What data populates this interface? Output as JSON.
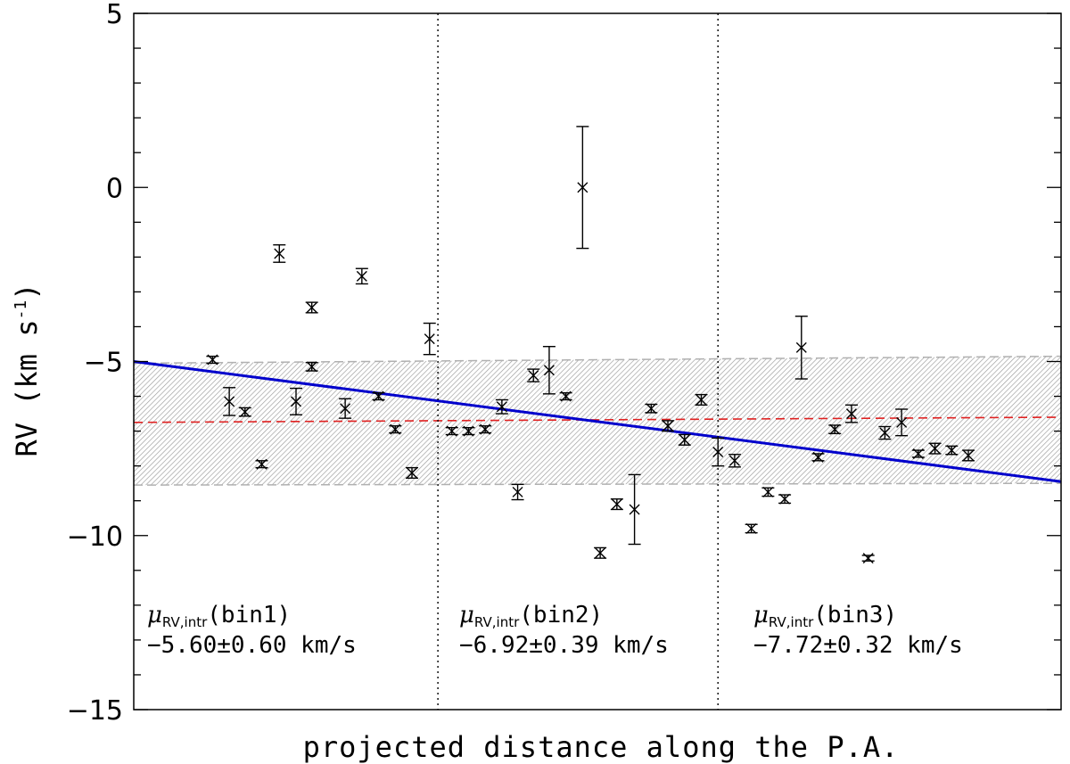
{
  "chart_data": {
    "type": "scatter",
    "title": "",
    "xlabel": "projected distance along the P.A.",
    "ylabel_base": "RV (km s",
    "ylabel_exp": "-1",
    "ylabel_close": ")",
    "ylim": [
      -15,
      5
    ],
    "xlim": [
      0,
      100
    ],
    "y_ticks": [
      5,
      0,
      -5,
      -10,
      -15
    ],
    "y_tick_labels": [
      "5",
      "0",
      "−5",
      "−10",
      "−15"
    ],
    "bin_boundaries_x": [
      32.8,
      63.0
    ],
    "points": [
      {
        "x": 8.5,
        "y": -4.95,
        "err": 0.1
      },
      {
        "x": 10.3,
        "y": -6.15,
        "err": 0.4
      },
      {
        "x": 12.0,
        "y": -6.45,
        "err": 0.12
      },
      {
        "x": 13.8,
        "y": -7.95,
        "err": 0.1
      },
      {
        "x": 15.7,
        "y": -1.9,
        "err": 0.25
      },
      {
        "x": 19.2,
        "y": -3.45,
        "err": 0.15
      },
      {
        "x": 19.2,
        "y": -5.15,
        "err": 0.12
      },
      {
        "x": 17.5,
        "y": -6.15,
        "err": 0.38
      },
      {
        "x": 22.8,
        "y": -6.35,
        "err": 0.28
      },
      {
        "x": 24.6,
        "y": -2.55,
        "err": 0.22
      },
      {
        "x": 26.4,
        "y": -6.0,
        "err": 0.1
      },
      {
        "x": 28.2,
        "y": -6.95,
        "err": 0.1
      },
      {
        "x": 30.0,
        "y": -8.2,
        "err": 0.15
      },
      {
        "x": 31.9,
        "y": -4.35,
        "err": 0.45
      },
      {
        "x": 34.3,
        "y": -7.0,
        "err": 0.1
      },
      {
        "x": 36.1,
        "y": -7.0,
        "err": 0.1
      },
      {
        "x": 37.9,
        "y": -6.95,
        "err": 0.1
      },
      {
        "x": 39.7,
        "y": -6.3,
        "err": 0.2
      },
      {
        "x": 41.4,
        "y": -8.75,
        "err": 0.22
      },
      {
        "x": 43.1,
        "y": -5.4,
        "err": 0.18
      },
      {
        "x": 44.8,
        "y": -5.25,
        "err": 0.68
      },
      {
        "x": 46.6,
        "y": -6.0,
        "err": 0.1
      },
      {
        "x": 48.4,
        "y": 0.0,
        "err": 1.75
      },
      {
        "x": 50.3,
        "y": -10.5,
        "err": 0.15
      },
      {
        "x": 52.1,
        "y": -9.1,
        "err": 0.15
      },
      {
        "x": 54.0,
        "y": -9.25,
        "err": 1.0
      },
      {
        "x": 55.8,
        "y": -6.35,
        "err": 0.12
      },
      {
        "x": 57.6,
        "y": -6.85,
        "err": 0.15
      },
      {
        "x": 59.4,
        "y": -7.25,
        "err": 0.15
      },
      {
        "x": 61.2,
        "y": -6.1,
        "err": 0.15
      },
      {
        "x": 63.0,
        "y": -7.6,
        "err": 0.4
      },
      {
        "x": 64.8,
        "y": -7.85,
        "err": 0.18
      },
      {
        "x": 66.6,
        "y": -9.8,
        "err": 0.12
      },
      {
        "x": 68.4,
        "y": -8.75,
        "err": 0.12
      },
      {
        "x": 70.2,
        "y": -8.95,
        "err": 0.12
      },
      {
        "x": 72.0,
        "y": -4.6,
        "err": 0.9
      },
      {
        "x": 73.8,
        "y": -7.75,
        "err": 0.1
      },
      {
        "x": 75.6,
        "y": -6.95,
        "err": 0.12
      },
      {
        "x": 77.4,
        "y": -6.5,
        "err": 0.25
      },
      {
        "x": 79.2,
        "y": -10.65,
        "err": 0.08
      },
      {
        "x": 81.0,
        "y": -7.05,
        "err": 0.18
      },
      {
        "x": 82.8,
        "y": -6.75,
        "err": 0.38
      },
      {
        "x": 84.6,
        "y": -7.65,
        "err": 0.1
      },
      {
        "x": 86.4,
        "y": -7.5,
        "err": 0.15
      },
      {
        "x": 88.2,
        "y": -7.55,
        "err": 0.12
      },
      {
        "x": 90.0,
        "y": -7.7,
        "err": 0.15
      }
    ],
    "fit_line": {
      "name": "linear fit",
      "x": [
        0,
        100
      ],
      "y": [
        -5.0,
        -8.45
      ],
      "color": "#0000cc"
    },
    "mean_line": {
      "name": "mean RV",
      "x": [
        0,
        100
      ],
      "y": [
        -6.75,
        -6.6
      ],
      "color": "#e02020"
    },
    "uncertainty_band": {
      "name": "fit uncertainty",
      "x": [
        0,
        100
      ],
      "upper": [
        -5.05,
        -4.85
      ],
      "lower": [
        -8.55,
        -8.5
      ],
      "color": "#a0a0a0"
    },
    "bins": [
      {
        "mu_label": "μ",
        "sub": "RV,intr",
        "arg": "(bin1)",
        "value": "−5.60±0.60 km/s"
      },
      {
        "mu_label": "μ",
        "sub": "RV,intr",
        "arg": "(bin2)",
        "value": "−6.92±0.39 km/s"
      },
      {
        "mu_label": "μ",
        "sub": "RV,intr",
        "arg": "(bin3)",
        "value": "−7.72±0.32 km/s"
      }
    ]
  }
}
